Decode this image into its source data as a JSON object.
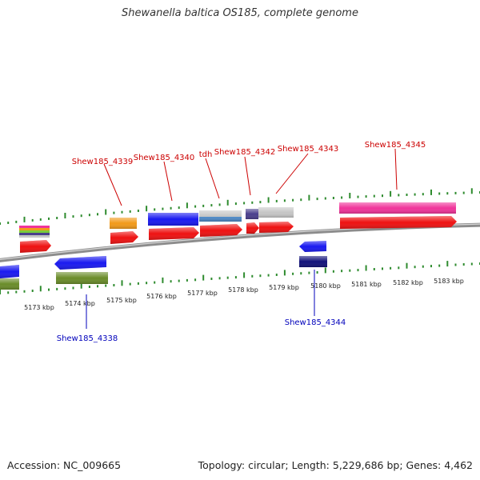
{
  "title": "Shewanella baltica OS185, complete genome",
  "footer": {
    "accession": "Accession: NC_009665",
    "summary": "Topology: circular; Length: 5,229,686 bp; Genes: 4,462"
  },
  "colors": {
    "backbone": "#8c8c8c",
    "tick": "#2e8b2e",
    "label_forward": "#cc0000",
    "label_reverse": "#0000bb",
    "cds": "#ee1111",
    "gene_blue": "#1a1af0",
    "gene_orange": "#f29a1a",
    "gene_pink": "#f0349a",
    "gene_olive": "#6a8c2a",
    "gene_navy": "#12127a",
    "gene_gray": "#c6c6c6",
    "gene_steelblue": "#4e8ac8",
    "gene_purple": "#4a3f8c"
  },
  "kbp_labels": [
    "5173 kbp",
    "5174 kbp",
    "5175 kbp",
    "5176 kbp",
    "5177 kbp",
    "5178 kbp",
    "5179 kbp",
    "5180 kbp",
    "5181 kbp",
    "5182 kbp",
    "5183 kbp"
  ],
  "gene_labels": {
    "forward": [
      "Shew185_4339",
      "Shew185_4340",
      "tdh",
      "Shew185_4342",
      "Shew185_4343",
      "Shew185_4345"
    ],
    "reverse": [
      "Shew185_4338",
      "Shew185_4344"
    ]
  }
}
